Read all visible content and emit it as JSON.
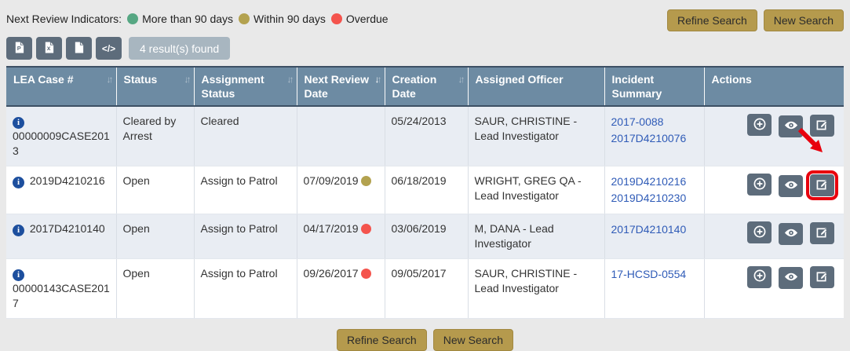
{
  "legend": {
    "label": "Next Review Indicators:",
    "items": [
      {
        "label": "More than 90 days",
        "color": "#56a783"
      },
      {
        "label": "Within 90 days",
        "color": "#b3a24f"
      },
      {
        "label": "Overdue",
        "color": "#f4544d"
      }
    ]
  },
  "search_buttons": {
    "refine_label": "Refine Search",
    "new_label": "New Search"
  },
  "toolbar": {
    "icons": [
      "pdf-file-icon",
      "excel-file-icon",
      "file-icon",
      "code-icon"
    ],
    "results_text": "4 result(s) found"
  },
  "table": {
    "columns": [
      {
        "label": "LEA Case #",
        "sortable": true,
        "sorted": ""
      },
      {
        "label": "Status",
        "sortable": true,
        "sorted": ""
      },
      {
        "label": "Assignment Status",
        "sortable": true,
        "sorted": ""
      },
      {
        "label": "Next Review Date",
        "sortable": true,
        "sorted": "desc"
      },
      {
        "label": "Creation Date",
        "sortable": true,
        "sorted": ""
      },
      {
        "label": "Assigned Officer",
        "sortable": false,
        "sorted": ""
      },
      {
        "label": "Incident Summary",
        "sortable": false,
        "sorted": ""
      },
      {
        "label": "Actions",
        "sortable": false,
        "sorted": ""
      }
    ],
    "rows": [
      {
        "case_number": "00000009CASE2013",
        "status": "Cleared by Arrest",
        "assignment_status": "Cleared",
        "next_review_date": "",
        "indicator_color": null,
        "creation_date": "05/24/2013",
        "assigned_officer": "SAUR, CHRISTINE - Lead Investigator",
        "incident_links": [
          "2017-0088",
          "2017D4210076"
        ],
        "edit_highlighted": false
      },
      {
        "case_number": "2019D4210216",
        "status": "Open",
        "assignment_status": "Assign to Patrol",
        "next_review_date": "07/09/2019",
        "indicator_color": "#b3a24f",
        "creation_date": "06/18/2019",
        "assigned_officer": "WRIGHT, GREG QA - Lead Investigator",
        "incident_links": [
          "2019D4210216",
          "2019D4210230"
        ],
        "edit_highlighted": true
      },
      {
        "case_number": "2017D4210140",
        "status": "Open",
        "assignment_status": "Assign to Patrol",
        "next_review_date": "04/17/2019",
        "indicator_color": "#f4544d",
        "creation_date": "03/06/2019",
        "assigned_officer": "M, DANA - Lead Investigator",
        "incident_links": [
          "2017D4210140"
        ],
        "edit_highlighted": false
      },
      {
        "case_number": "00000143CASE2017",
        "status": "Open",
        "assignment_status": "Assign to Patrol",
        "next_review_date": "09/26/2017",
        "indicator_color": "#f4544d",
        "creation_date": "09/05/2017",
        "assigned_officer": "SAUR, CHRISTINE - Lead Investigator",
        "incident_links": [
          "17-HCSD-0554"
        ],
        "edit_highlighted": false
      }
    ]
  },
  "colors": {
    "header_bg": "#6d8ba3",
    "button_tan": "#b59a4d",
    "tool_button_bg": "#5d6c7b",
    "link": "#2f5bb7",
    "highlight_red": "#e8000d",
    "info_icon_blue": "#1d4f9e"
  }
}
